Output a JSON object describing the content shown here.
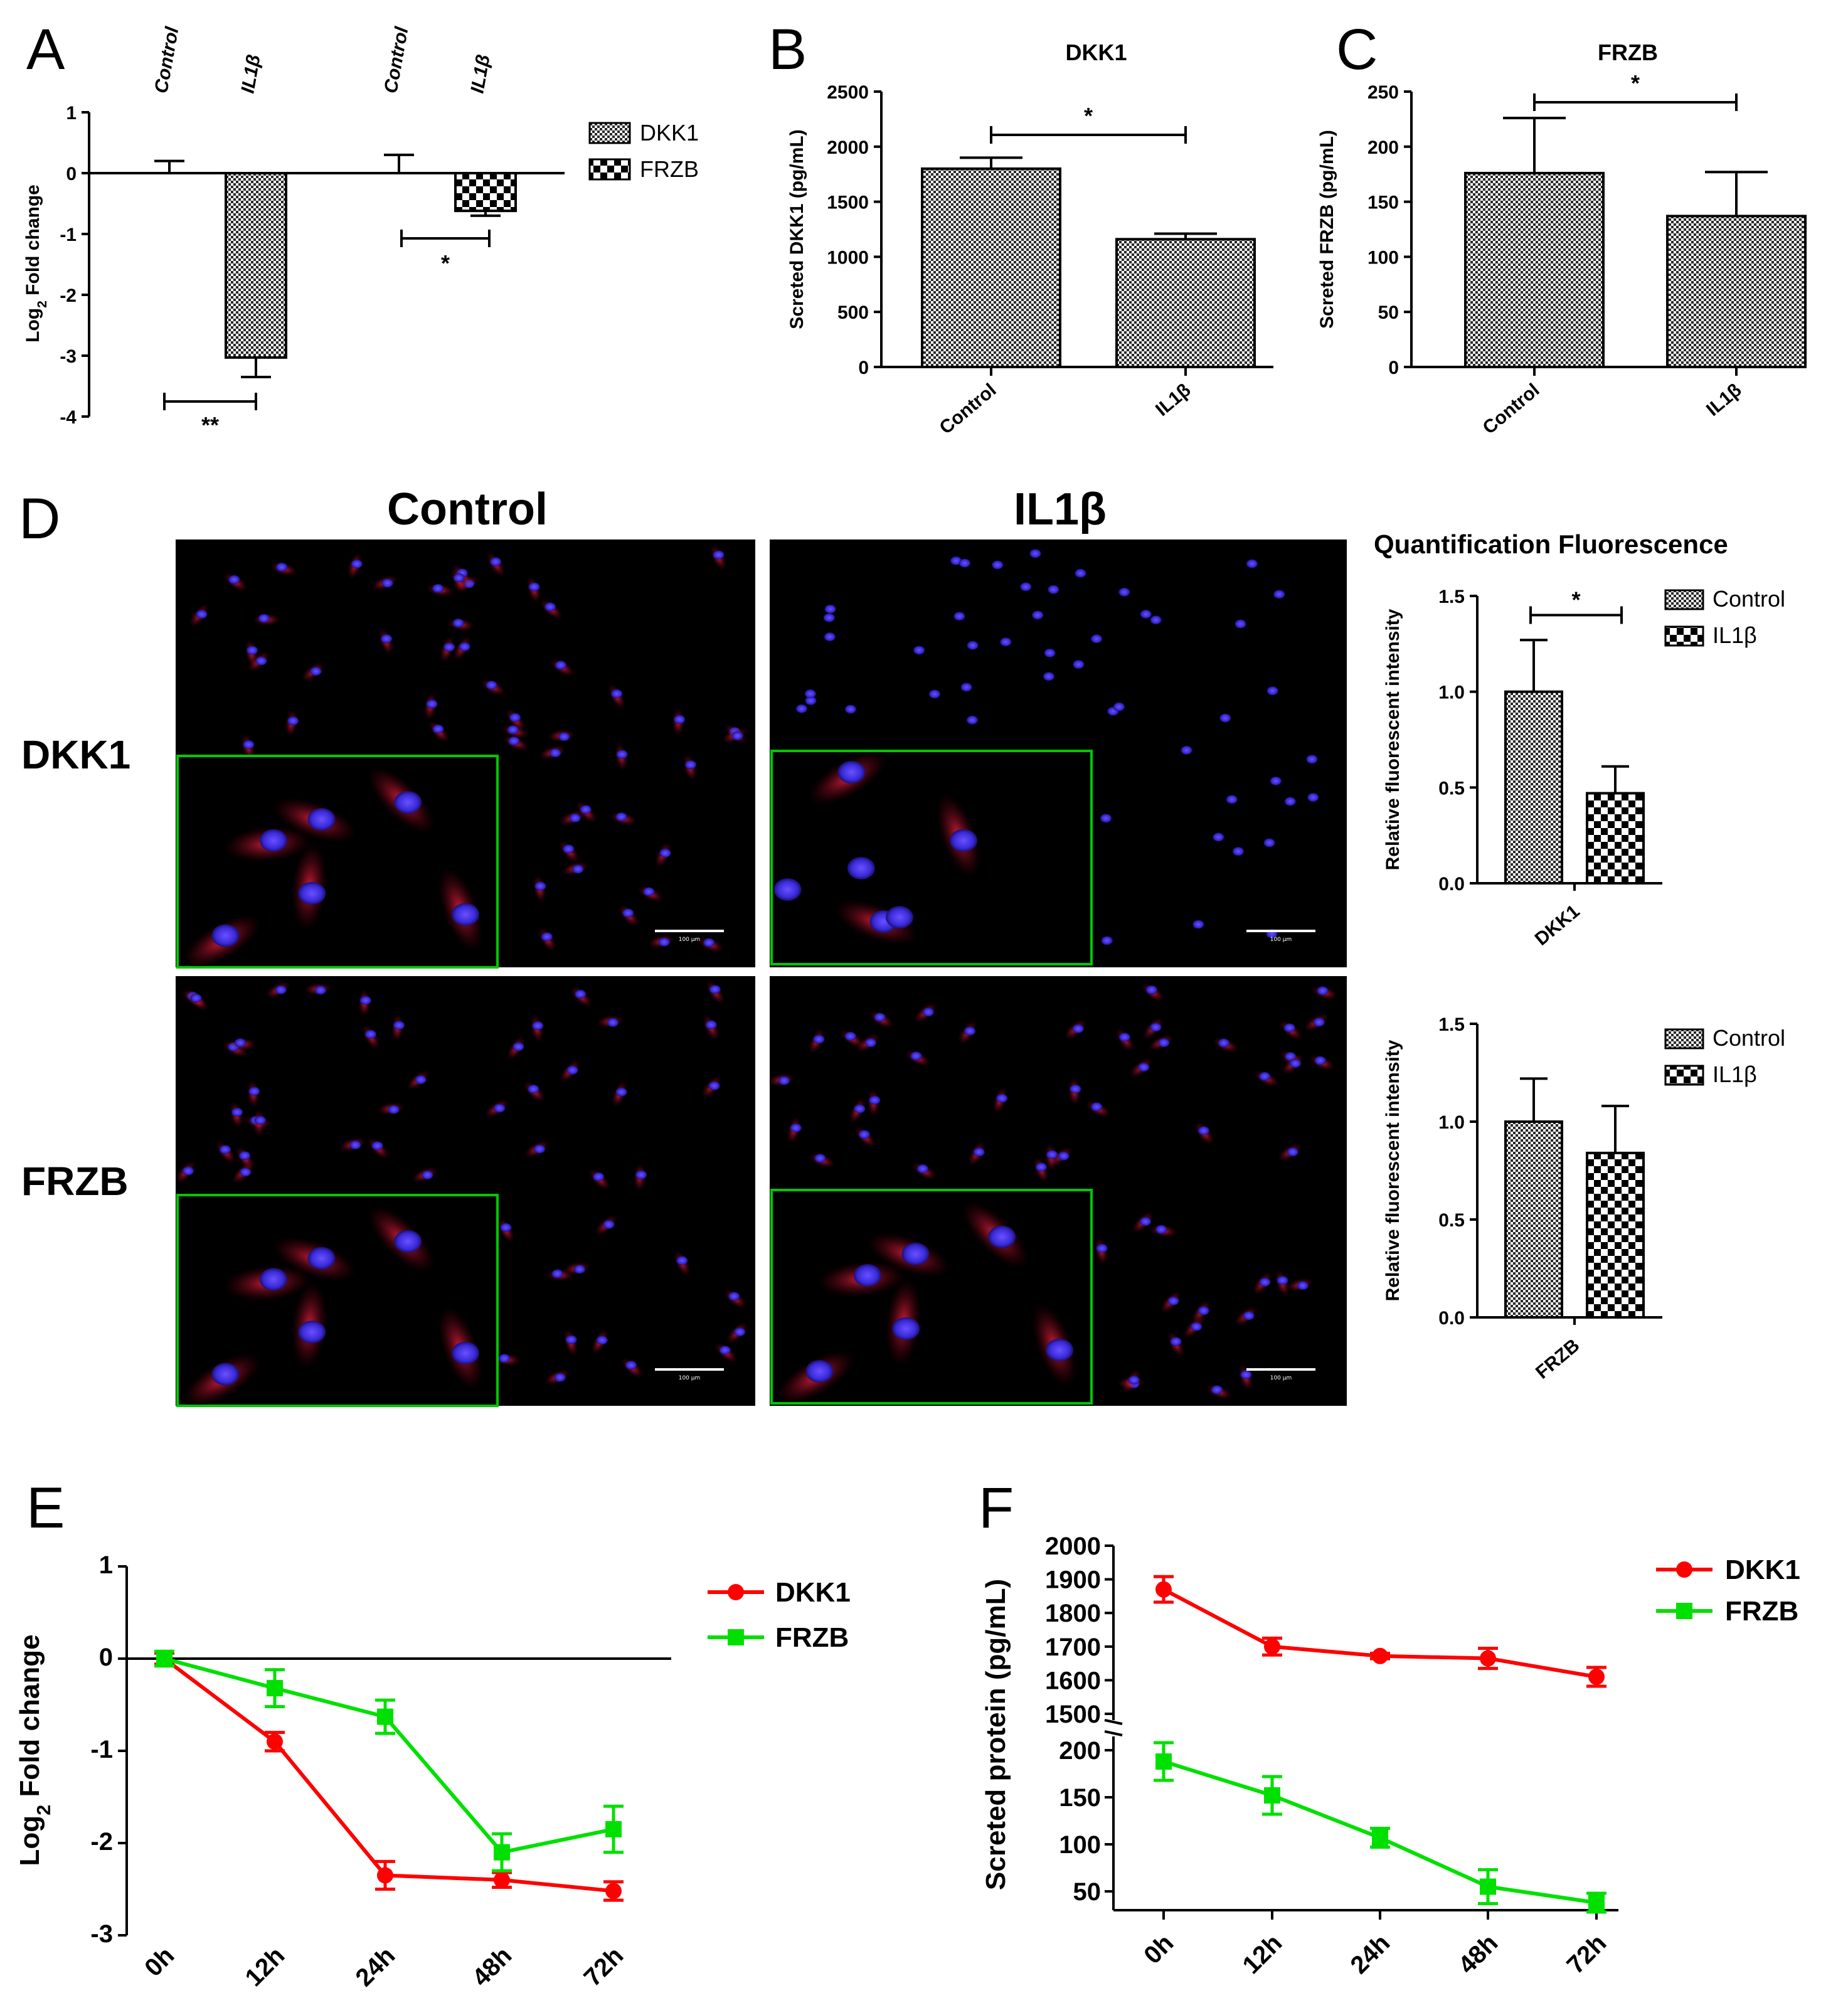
{
  "panel_labels": {
    "A": "A",
    "B": "B",
    "C": "C",
    "D": "D",
    "E": "E",
    "F": "F"
  },
  "colors": {
    "dkk1_line": "#ff0000",
    "frzb_line": "#00e000",
    "inset_border": "#00c800",
    "background": "#ffffff"
  },
  "panelD": {
    "col_control": "Control",
    "col_il1b": "IL1β",
    "row_dkk1": "DKK1",
    "row_frzb": "FRZB",
    "scale_bar_label": "100 μm",
    "quant_title": "Quantification Fluorescence"
  },
  "chart_data": [
    {
      "id": "A",
      "type": "bar",
      "ylabel": "Log2 Fold change",
      "ylim": [
        -4,
        1
      ],
      "yticks": [
        "1",
        "0",
        "-1",
        "-2",
        "-3",
        "-4"
      ],
      "bar_labels": [
        "Control",
        "IL1β",
        "Control",
        "IL1β"
      ],
      "series": [
        {
          "name": "DKK1",
          "values": [
            0,
            -3.03
          ],
          "errors": [
            0.2,
            0.32
          ]
        },
        {
          "name": "FRZB",
          "values": [
            0,
            -0.62
          ],
          "errors": [
            0.3,
            0.08
          ]
        }
      ],
      "legend": [
        "DKK1",
        "FRZB"
      ],
      "legend_position": "right",
      "significance": [
        "**",
        "*"
      ]
    },
    {
      "id": "B",
      "type": "bar",
      "title": "DKK1",
      "ylabel": "Screted DKK1 (pg/mL)",
      "categories": [
        "Control",
        "IL1β"
      ],
      "values": [
        1800,
        1160
      ],
      "errors": [
        100,
        50
      ],
      "ylim": [
        0,
        2500
      ],
      "yticks": [
        "0",
        "500",
        "1000",
        "1500",
        "2000",
        "2500"
      ],
      "significance": "*"
    },
    {
      "id": "C",
      "type": "bar",
      "title": "FRZB",
      "ylabel": "Screted FRZB (pg/mL)",
      "categories": [
        "Control",
        "IL1β"
      ],
      "values": [
        176,
        137
      ],
      "errors": [
        50,
        40
      ],
      "ylim": [
        0,
        250
      ],
      "yticks": [
        "0",
        "50",
        "100",
        "150",
        "200",
        "250"
      ],
      "significance": "*"
    },
    {
      "id": "D-DKK1",
      "type": "bar",
      "ylabel": "Relative fluorescent intensity",
      "xlabel": "DKK1",
      "series": [
        {
          "name": "Control",
          "values": [
            1.0
          ],
          "errors": [
            0.27
          ]
        },
        {
          "name": "IL1β",
          "values": [
            0.47
          ],
          "errors": [
            0.14
          ]
        }
      ],
      "ylim": [
        0,
        1.5
      ],
      "yticks": [
        "0.0",
        "0.5",
        "1.0",
        "1.5"
      ],
      "legend_position": "top-right",
      "significance": "*"
    },
    {
      "id": "D-FRZB",
      "type": "bar",
      "ylabel": "Relative fluorescent intensity",
      "xlabel": "FRZB",
      "series": [
        {
          "name": "Control",
          "values": [
            1.0
          ],
          "errors": [
            0.22
          ]
        },
        {
          "name": "IL1β",
          "values": [
            0.84
          ],
          "errors": [
            0.24
          ]
        }
      ],
      "ylim": [
        0,
        1.5
      ],
      "yticks": [
        "0.0",
        "0.5",
        "1.0",
        "1.5"
      ],
      "legend_position": "top-right"
    },
    {
      "id": "E",
      "type": "line",
      "ylabel": "Log2 Fold change",
      "x": [
        "0h",
        "12h",
        "24h",
        "48h",
        "72h"
      ],
      "ylim": [
        -3,
        1
      ],
      "yticks": [
        "1",
        "0",
        "-1",
        "-2",
        "-3"
      ],
      "series": [
        {
          "name": "DKK1",
          "values": [
            0,
            -0.9,
            -2.35,
            -2.4,
            -2.52
          ],
          "errors": [
            0.06,
            0.1,
            0.15,
            0.08,
            0.1
          ]
        },
        {
          "name": "FRZB",
          "values": [
            0,
            -0.32,
            -0.63,
            -2.1,
            -1.85
          ],
          "errors": [
            0.08,
            0.2,
            0.18,
            0.2,
            0.25
          ]
        }
      ],
      "legend_position": "top-right"
    },
    {
      "id": "F",
      "type": "line",
      "ylabel": "Screted protein (pg/mL)",
      "x": [
        "0h",
        "12h",
        "24h",
        "48h",
        "72h"
      ],
      "axis_break": true,
      "upper_ylim": [
        1500,
        2000
      ],
      "upper_yticks": [
        "2000",
        "1900",
        "1800",
        "1700",
        "1600",
        "1500"
      ],
      "lower_ylim": [
        30,
        210
      ],
      "lower_yticks": [
        "200",
        "150",
        "100",
        "50"
      ],
      "series": [
        {
          "name": "DKK1",
          "values": [
            1870,
            1700,
            1672,
            1665,
            1610
          ],
          "errors": [
            38,
            25,
            8,
            30,
            28
          ]
        },
        {
          "name": "FRZB",
          "values": [
            188,
            152,
            107,
            55,
            38
          ],
          "errors": [
            20,
            20,
            10,
            18,
            10
          ]
        }
      ],
      "legend_position": "top-right"
    }
  ]
}
